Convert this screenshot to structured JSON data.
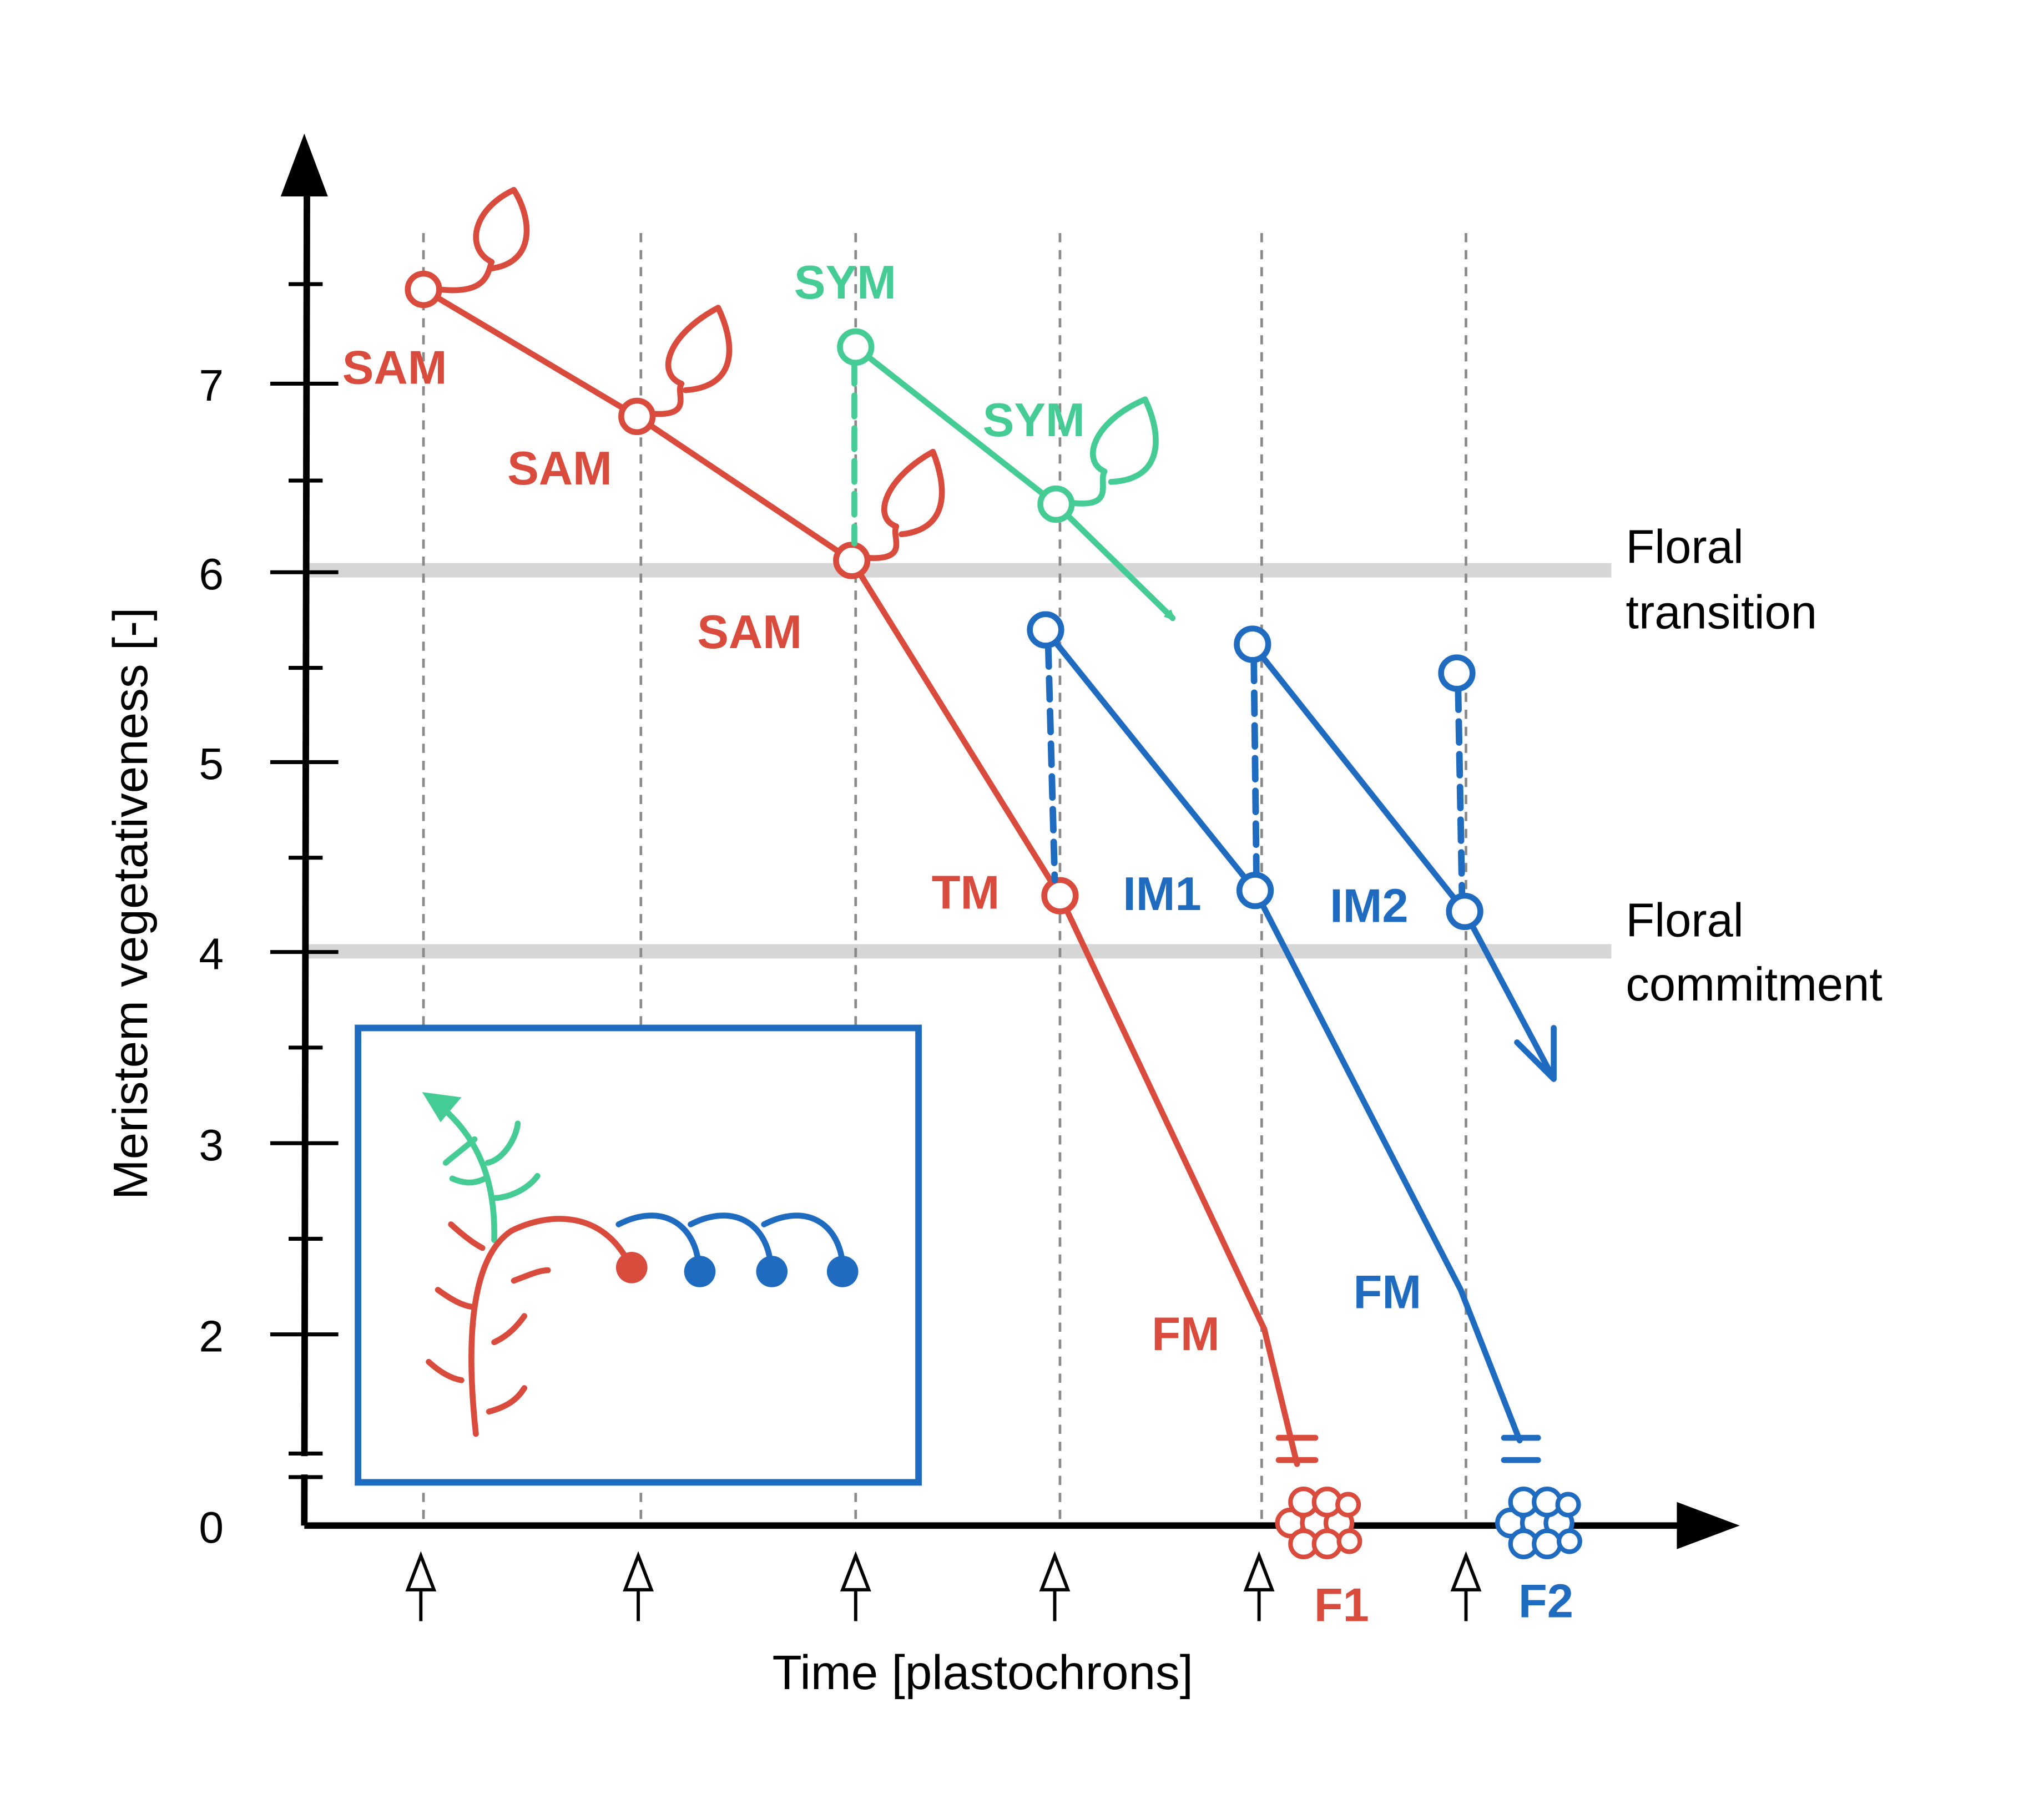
{
  "colors": {
    "red": "#d94c3d",
    "blue": "#1f6bbf",
    "green": "#45cc94",
    "grid_dash": "#8a8a8a",
    "ref_band": "#d6d6d6",
    "axis": "#000000"
  },
  "axes": {
    "x_title": "Time [plastochrons]",
    "y_title": "Meristem vegetativeness [-]",
    "y_tick_labels": [
      "0",
      "2",
      "3",
      "4",
      "5",
      "6",
      "7"
    ]
  },
  "reference_lines": [
    {
      "value": 6,
      "line1": "Floral",
      "line2": "transition"
    },
    {
      "value": 4,
      "line1": "Floral",
      "line2": "commitment"
    }
  ],
  "state_labels": {
    "sam": "SAM",
    "sym": "SYM",
    "tm": "TM",
    "im1": "IM1",
    "im2": "IM2",
    "fm": "FM",
    "f1": "F1",
    "f2": "F2"
  },
  "chart_data": {
    "type": "line",
    "xlabel": "Time [plastochrons]",
    "ylabel": "Meristem vegetativeness [-]",
    "ylim": [
      0,
      7.5
    ],
    "y_ticks": [
      0,
      2,
      3,
      4,
      5,
      6,
      7
    ],
    "plastochron_marks": [
      1,
      2,
      3,
      4,
      5,
      6
    ],
    "reference_lines": [
      {
        "y": 6,
        "label": "Floral transition"
      },
      {
        "y": 4,
        "label": "Floral commitment"
      }
    ],
    "series": [
      {
        "color": "red",
        "points": [
          {
            "x": 1.0,
            "y": 7.5,
            "label": "SAM"
          },
          {
            "x": 2.0,
            "y": 6.8,
            "label": "SAM"
          },
          {
            "x": 3.0,
            "y": 6.05,
            "label": "SAM"
          },
          {
            "x": 3.95,
            "y": 4.3,
            "label": "TM"
          },
          {
            "x": 4.95,
            "y": 2.0,
            "label": "FM"
          },
          {
            "x": 5.1,
            "y": 0.0,
            "label": "F1"
          }
        ]
      },
      {
        "color": "green",
        "points": [
          {
            "x": 3.0,
            "y": 7.2,
            "label": "SYM"
          },
          {
            "x": 3.95,
            "y": 6.35,
            "label": "SYM"
          },
          {
            "x": 4.55,
            "y": 5.9,
            "label": ""
          }
        ]
      },
      {
        "color": "blue",
        "points": [
          {
            "x": 3.9,
            "y": 5.7,
            "label": ""
          },
          {
            "x": 4.9,
            "y": 4.35,
            "label": "IM1"
          },
          {
            "x": 5.9,
            "y": 2.25,
            "label": "FM"
          },
          {
            "x": 6.3,
            "y": 0.0,
            "label": "F2"
          }
        ]
      },
      {
        "color": "blue",
        "points": [
          {
            "x": 4.9,
            "y": 5.6,
            "label": ""
          },
          {
            "x": 5.9,
            "y": 4.2,
            "label": "IM2"
          },
          {
            "x": 6.35,
            "y": 3.5,
            "label": ""
          }
        ]
      }
    ]
  }
}
